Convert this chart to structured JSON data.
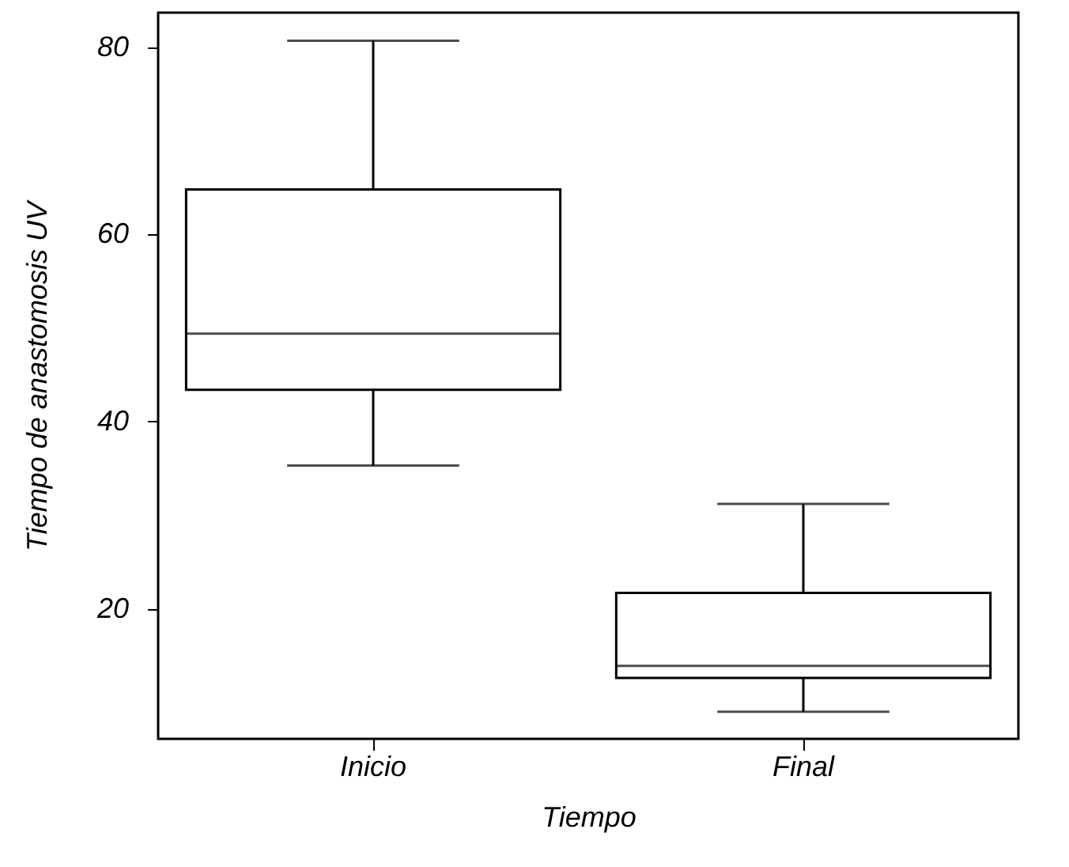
{
  "chart_data": {
    "type": "box",
    "xlabel": "Tiempo",
    "ylabel": "Tiempo de anastomosis UV",
    "categories": [
      "Inicio",
      "Final"
    ],
    "boxes": [
      {
        "low": 35.3,
        "q1": 43.4,
        "median": 49.4,
        "q3": 64.8,
        "high": 80.7
      },
      {
        "low": 9.0,
        "q1": 12.6,
        "median": 13.9,
        "q3": 21.7,
        "high": 31.2
      }
    ],
    "ylim": [
      6.1,
      83.7
    ],
    "yticks": [
      20,
      40,
      60,
      80
    ],
    "grid": false
  }
}
